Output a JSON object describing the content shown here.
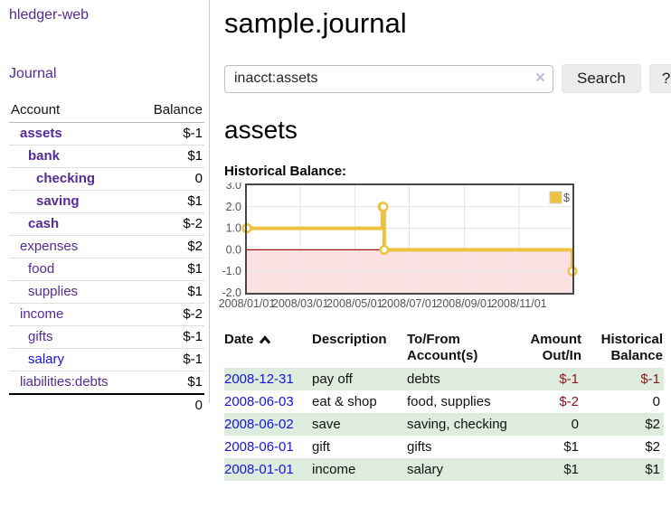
{
  "app": {
    "brand": "hledger-web"
  },
  "sidebar": {
    "nav_journal": "Journal",
    "accounts": {
      "header_account": "Account",
      "header_balance": "Balance",
      "rows": [
        {
          "name": "assets",
          "indent": 1,
          "bold": true,
          "balance": "$-1",
          "balance_tone": "neg"
        },
        {
          "name": "bank",
          "indent": 2,
          "bold": true,
          "balance": "$1",
          "balance_tone": "pos"
        },
        {
          "name": "checking",
          "indent": 3,
          "bold": true,
          "balance": "0",
          "balance_tone": "pos"
        },
        {
          "name": "saving",
          "indent": 3,
          "bold": true,
          "balance": "$1",
          "balance_tone": "pos"
        },
        {
          "name": "cash",
          "indent": 2,
          "bold": true,
          "balance": "$-2",
          "balance_tone": "neg"
        },
        {
          "name": "expenses",
          "indent": 1,
          "bold": false,
          "balance": "$2",
          "balance_tone": "pos"
        },
        {
          "name": "food",
          "indent": 2,
          "bold": false,
          "balance": "$1",
          "balance_tone": "pos"
        },
        {
          "name": "supplies",
          "indent": 2,
          "bold": false,
          "balance": "$1",
          "balance_tone": "pos"
        },
        {
          "name": "income",
          "indent": 1,
          "bold": false,
          "balance": "$-2",
          "balance_tone": "neg-dim"
        },
        {
          "name": "gifts",
          "indent": 2,
          "bold": false,
          "balance": "$-1",
          "balance_tone": "neg-dim"
        },
        {
          "name": "salary",
          "indent": 2,
          "bold": false,
          "link_color": "blue",
          "balance": "$-1",
          "balance_tone": "neg-dim"
        },
        {
          "name": "liabilities:debts",
          "indent": 1,
          "bold": false,
          "balance": "$1",
          "balance_tone": "pos"
        }
      ],
      "total": "0"
    }
  },
  "main": {
    "title": "sample.journal",
    "search": {
      "value": "inacct:assets",
      "clear_icon": "×",
      "search_button": "Search",
      "help_button": "?"
    },
    "account_heading": "assets",
    "chart_heading": "Historical Balance:"
  },
  "chart_data": {
    "type": "line",
    "line_style": "step",
    "title": "Historical Balance:",
    "x_range": [
      "2008-01-01",
      "2008-12-31"
    ],
    "y_range": [
      -2,
      3
    ],
    "x_ticks": [
      "2008/01/01",
      "2008/03/01",
      "2008/05/01",
      "2008/07/01",
      "2008/09/01",
      "2008/11/01"
    ],
    "y_ticks": [
      "3.0",
      "2.0",
      "1.0",
      "0.0",
      "-1.0",
      "-2.0"
    ],
    "series": [
      {
        "name": "$",
        "color": "#edc240",
        "points": [
          [
            "2008-01-01",
            1
          ],
          [
            "2008-06-01",
            2
          ],
          [
            "2008-06-02",
            2
          ],
          [
            "2008-06-03",
            0
          ],
          [
            "2008-12-31",
            -1
          ]
        ]
      }
    ],
    "legend": {
      "position": "top-right",
      "label": "$"
    },
    "grid": true,
    "grid_color": "#e5e5e5",
    "border_color": "#474747",
    "negative_region_color": "#fbe1e1",
    "zero_line_color": "#a10d0d"
  },
  "register": {
    "headers": {
      "date": "Date",
      "description": "Description",
      "accounts": "To/From Account(s)",
      "amount": "Amount Out/In",
      "balance": "Historical Balance"
    },
    "sort": {
      "column": "date",
      "direction": "ascending"
    },
    "rows": [
      {
        "date": "2008-12-31",
        "description": "pay off",
        "accounts": "debts",
        "amount": "$-1",
        "balance": "$-1"
      },
      {
        "date": "2008-06-03",
        "description": "eat & shop",
        "accounts": "food, supplies",
        "amount": "$-2",
        "balance": "0"
      },
      {
        "date": "2008-06-02",
        "description": "save",
        "accounts": "saving, checking",
        "amount": "0",
        "balance": "$2"
      },
      {
        "date": "2008-06-01",
        "description": "gift",
        "accounts": "gifts",
        "amount": "$1",
        "balance": "$2"
      },
      {
        "date": "2008-01-01",
        "description": "income",
        "accounts": "salary",
        "amount": "$1",
        "balance": "$1"
      }
    ]
  },
  "colors": {
    "link_purple": "#552a97",
    "link_blue": "#1414dd",
    "negative": "#8b1519",
    "negative_dim": "#c47d7d",
    "row_stripe_green": "#deecde",
    "series_yellow": "#edc240"
  }
}
